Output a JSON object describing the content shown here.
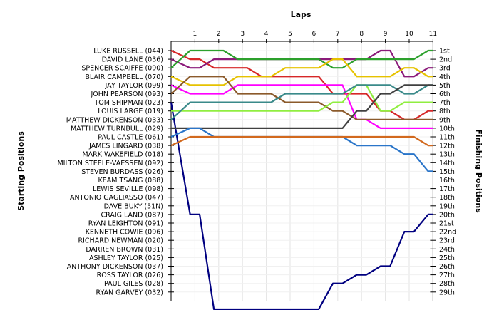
{
  "chart_data": {
    "type": "line",
    "title": "Laps",
    "y_left_label": "Starting Positions",
    "y_right_label": "Finishing Positions",
    "laps": [
      1,
      2,
      3,
      4,
      5,
      6,
      7,
      8,
      9,
      10,
      11
    ],
    "drivers": [
      "LUKE RUSSELL (044)",
      "DAVID LANE (036)",
      "SPENCER SCAIFFE (090)",
      "BLAIR CAMPBELL (070)",
      "JAY TAYLOR (099)",
      "JOHN PEARSON (093)",
      "TOM SHIPMAN (023)",
      "LOUIS LARGE (019)",
      "MATTHEW DICKENSON (033)",
      "MATTHEW TURNBULL (029)",
      "PAUL CASTLE (061)",
      "JAMES LINGARD (038)",
      "MARK WAKEFIELD (018)",
      "MILTON STEELE-VAESSEN (092)",
      "STEVEN BURDASS (026)",
      "KEAM TSANG (088)",
      "LEWIS SEVILLE (098)",
      "ANTONIO GAGLIASSO (047)",
      "DAVE BUKY (51N)",
      "CRAIG LAND (087)",
      "RYAN LEIGHTON (091)",
      "KENNETH COWIE (096)",
      "RICHARD NEWMAN (020)",
      "DARREN BROWN (031)",
      "ASHLEY TAYLOR (025)",
      "ANTHONY DICKENSON (037)",
      "ROSS TAYLOR (026)",
      "PAUL GILES (028)",
      "RYAN GARVEY (032)"
    ],
    "finishing_labels": [
      "1st",
      "2nd",
      "3rd",
      "4th",
      "5th",
      "6th",
      "7th",
      "8th",
      "9th",
      "10th",
      "11th",
      "12th",
      "13th",
      "14th",
      "15th",
      "16th",
      "17th",
      "18th",
      "19th",
      "20th",
      "21st",
      "22nd",
      "23rd",
      "24th",
      "25th",
      "26th",
      "27th",
      "28th",
      "29th"
    ],
    "series": [
      {
        "color": "#d62728",
        "positions": [
          1,
          2,
          3,
          3,
          4,
          4,
          4,
          6,
          6,
          8,
          9,
          8
        ]
      },
      {
        "color": "#8b1a7a",
        "positions": [
          2,
          3,
          2,
          2,
          2,
          2,
          2,
          2,
          2,
          1,
          4,
          3
        ]
      },
      {
        "color": "#2ca02c",
        "positions": [
          3,
          1,
          1,
          2,
          2,
          2,
          2,
          3,
          2,
          2,
          2,
          1
        ]
      },
      {
        "color": "#e6c200",
        "positions": [
          4,
          5,
          5,
          4,
          4,
          3,
          3,
          2,
          4,
          4,
          3,
          4
        ]
      },
      {
        "color": "#ff00ff",
        "positions": [
          5,
          6,
          6,
          5,
          5,
          5,
          5,
          5,
          9,
          10,
          10,
          10
        ]
      },
      {
        "color": "#8b5a2b",
        "positions": [
          6,
          4,
          4,
          6,
          6,
          7,
          7,
          8,
          9,
          9,
          9,
          9
        ]
      },
      {
        "color": "#000080",
        "positions": [
          7,
          20,
          31,
          31,
          31,
          31,
          31,
          28,
          27,
          26,
          22,
          20
        ]
      },
      {
        "color": "#90ee40",
        "positions": [
          8,
          8,
          8,
          8,
          8,
          8,
          8,
          7,
          5,
          8,
          7,
          7
        ]
      },
      {
        "color": "#3a8a8a",
        "positions": [
          9,
          7,
          7,
          7,
          7,
          6,
          6,
          6,
          5,
          5,
          6,
          5
        ]
      },
      {
        "color": "#404040",
        "positions": [
          10,
          10,
          10,
          10,
          10,
          10,
          10,
          10,
          8,
          6,
          5,
          5
        ]
      },
      {
        "color": "#2a75c9",
        "positions": [
          11,
          10,
          11,
          11,
          11,
          11,
          11,
          11,
          12,
          12,
          13,
          15
        ]
      },
      {
        "color": "#d2691e",
        "positions": [
          12,
          11,
          11,
          11,
          11,
          11,
          11,
          11,
          11,
          11,
          11,
          12
        ]
      }
    ]
  }
}
